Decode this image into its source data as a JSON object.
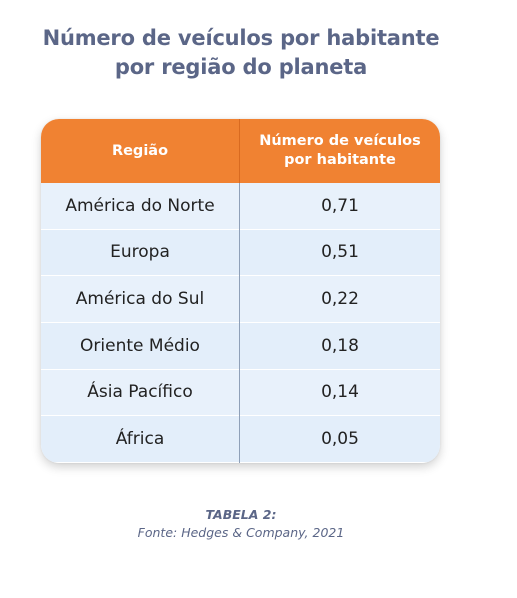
{
  "title": {
    "line1": "Número de veículos por habitante",
    "line2": "por região do planeta"
  },
  "table": {
    "headers": {
      "region": "Região",
      "value_line1": "Número de veículos",
      "value_line2": "por habitante"
    },
    "rows": [
      {
        "region": "América do Norte",
        "value": "0,71"
      },
      {
        "region": "Europa",
        "value": "0,51"
      },
      {
        "region": "América do Sul",
        "value": "0,22"
      },
      {
        "region": "Oriente Médio",
        "value": "0,18"
      },
      {
        "region": "Ásia Pacífico",
        "value": "0,14"
      },
      {
        "region": "África",
        "value": "0,05"
      }
    ]
  },
  "caption": {
    "label": "TABELA 2:",
    "source": "Fonte: Hedges & Company, 2021"
  },
  "colors": {
    "header_bg": "#f08232",
    "title_text": "#5b6687",
    "row_bg": "#e8f1fb"
  }
}
